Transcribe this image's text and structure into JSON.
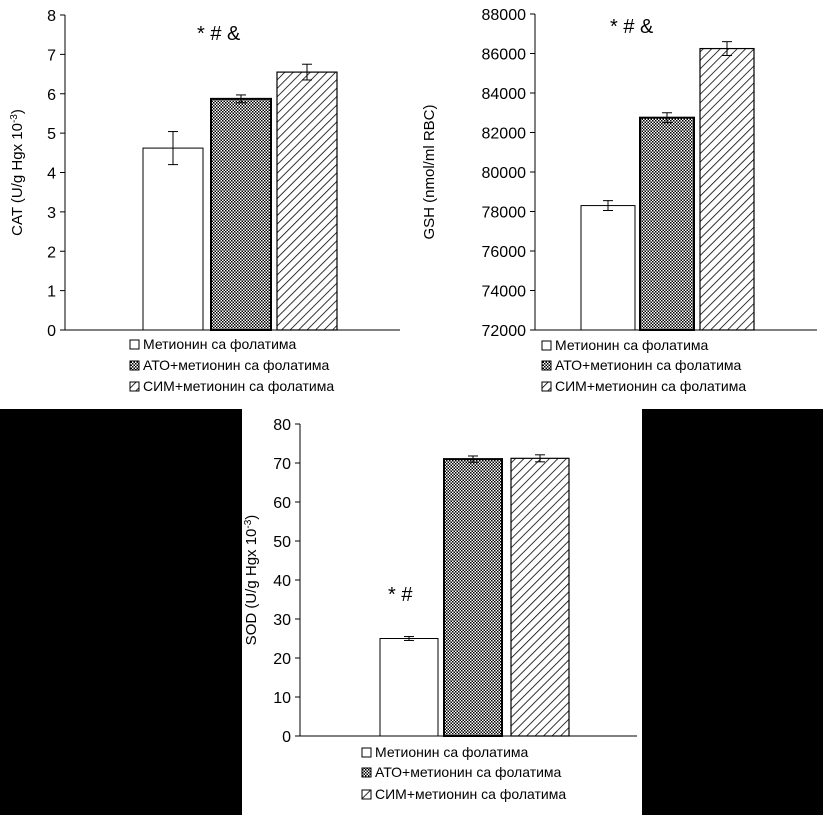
{
  "legend_labels": [
    "Метионин са фолатима",
    "АТО+метионин са фолатима",
    "СИМ+метионин са фолатима"
  ],
  "colors": {
    "bar_fill": "#ffffff",
    "bar_stroke": "#000000",
    "background": "#000000",
    "panel": "#ffffff"
  },
  "chart_data": [
    {
      "type": "bar",
      "categories": [
        "Метионин са фолатима",
        "АТО+метионин са фолатима",
        "СИМ+метионин са фолатима"
      ],
      "values": [
        4.62,
        5.87,
        6.55
      ],
      "errors": [
        0.42,
        0.1,
        0.2
      ],
      "ylabel": "CAT (U/g Hgx 10",
      "ylabel_sup": "-3",
      "ylabel_end": ")",
      "ylim": [
        0,
        8
      ],
      "yticks": [
        0,
        1,
        2,
        3,
        4,
        5,
        6,
        7,
        8
      ],
      "ytick_labels": [
        "0",
        "1",
        "2",
        "3",
        "4",
        "5",
        "6",
        "7",
        "8"
      ],
      "annotation": "*  # &",
      "legend": "bottom",
      "grid": false
    },
    {
      "type": "bar",
      "categories": [
        "Метионин са фолатима",
        "АТО+метионин са фолатима",
        "СИМ+метионин са фолатима"
      ],
      "values": [
        78300,
        82750,
        86250
      ],
      "errors": [
        250,
        250,
        350
      ],
      "ylabel": "GSH (nmol/ml RBC)",
      "ylabel_sup": "",
      "ylabel_end": "",
      "ylim": [
        72000,
        88000
      ],
      "yticks": [
        72000,
        74000,
        76000,
        78000,
        80000,
        82000,
        84000,
        86000,
        88000
      ],
      "ytick_labels": [
        "72000",
        "74000",
        "76000",
        "78000",
        "80000",
        "82000",
        "84000",
        "86000",
        "88000"
      ],
      "annotation": "*  # &",
      "legend": "bottom",
      "grid": false
    },
    {
      "type": "bar",
      "categories": [
        "Метионин са фолатима",
        "АТО+метионин са фолатима",
        "СИМ+метионин са фолатима"
      ],
      "values": [
        25,
        71,
        71.2
      ],
      "errors": [
        0.5,
        0.8,
        0.9
      ],
      "ylabel": "SOD (U/g Hgx 10",
      "ylabel_sup": "-3",
      "ylabel_end": ")",
      "ylim": [
        0,
        80
      ],
      "yticks": [
        0,
        10,
        20,
        30,
        40,
        50,
        60,
        70,
        80
      ],
      "ytick_labels": [
        "0",
        "10",
        "20",
        "30",
        "40",
        "50",
        "60",
        "70",
        "80"
      ],
      "annotation": "*  #",
      "legend": "bottom",
      "grid": false
    }
  ]
}
